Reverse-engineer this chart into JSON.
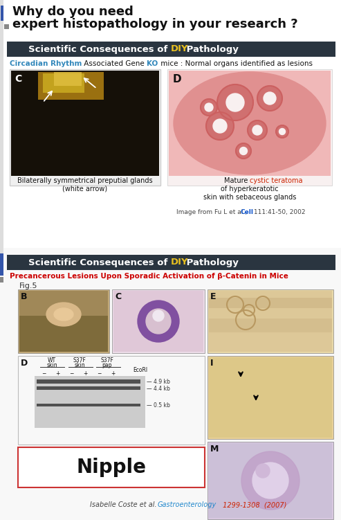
{
  "bg_color": "#ffffff",
  "title_line1": "Why do you need ",
  "title_line2": "expert histopathology in your research ?",
  "title_color": "#111111",
  "title_fontsize": 13,
  "blue_bar_color": "#3355aa",
  "blue_bar2_color": "#4466bb",
  "banner_bg": "#2a3540",
  "banner_diy_color": "#e8c020",
  "banner_text_color": "#ffffff",
  "banner_fontsize": 9.5,
  "subtitle1_parts": [
    {
      "text": "Circadian Rhythm",
      "color": "#3388bb",
      "bold": true
    },
    {
      "text": " Associated Gene ",
      "color": "#111111",
      "bold": false
    },
    {
      "text": "KO",
      "color": "#3388bb",
      "bold": true
    },
    {
      "text": " mice : Normal organs identified as lesions",
      "color": "#111111",
      "bold": false
    }
  ],
  "subtitle1_fontsize": 7.5,
  "caption_c_text": "Bilaterally symmetrical preputial glands\n(white arrow)",
  "caption_c_fontsize": 7,
  "caption_d_fontsize": 7,
  "ref_fontsize": 6.5,
  "section2_title": "Precancerous Lesions Upon Sporadic Activation of β-Catenin in Mice",
  "section2_title_color": "#cc0000",
  "section2_title_fontsize": 7.5,
  "fig5_fontsize": 8,
  "nipple_fontsize": 20,
  "nipple_border_color": "#cc3333",
  "ref2_fontsize": 7,
  "panel_label_fontsize": 9,
  "gel_label_fontsize": 5.5
}
